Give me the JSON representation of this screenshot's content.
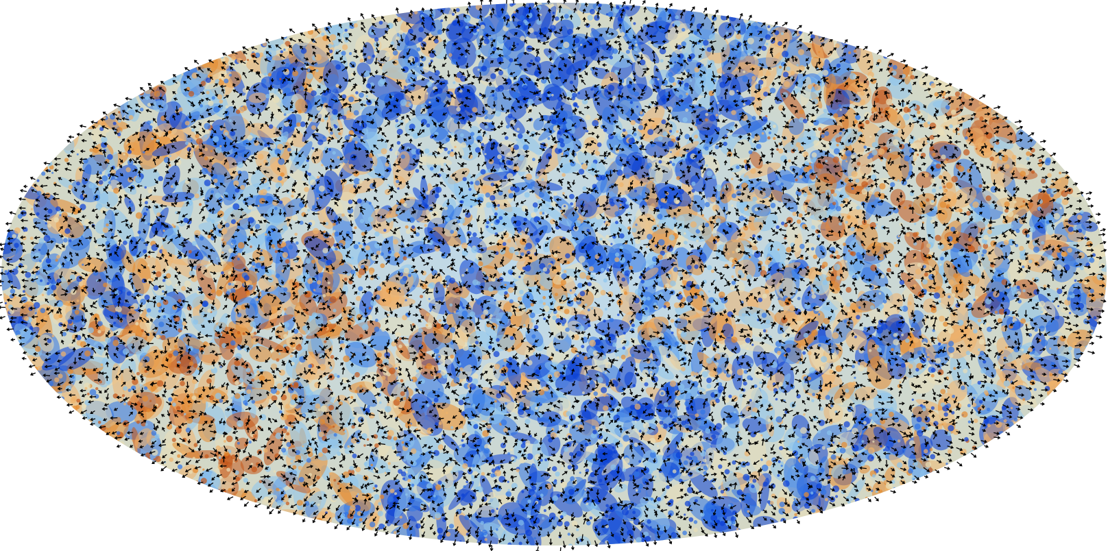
{
  "figure": {
    "projection": "mollweide",
    "temperature_palette": {
      "deep_blue": "#0a3fd6",
      "blue": "#2f74e6",
      "light_blue": "#8cc4ee",
      "pale": "#e9dfb8",
      "light_orange": "#f0b36b",
      "orange": "#e58a2e",
      "dark_orange": "#c4571a"
    },
    "polarization_vector_color": "#000000",
    "background_color": "#ffffff"
  }
}
